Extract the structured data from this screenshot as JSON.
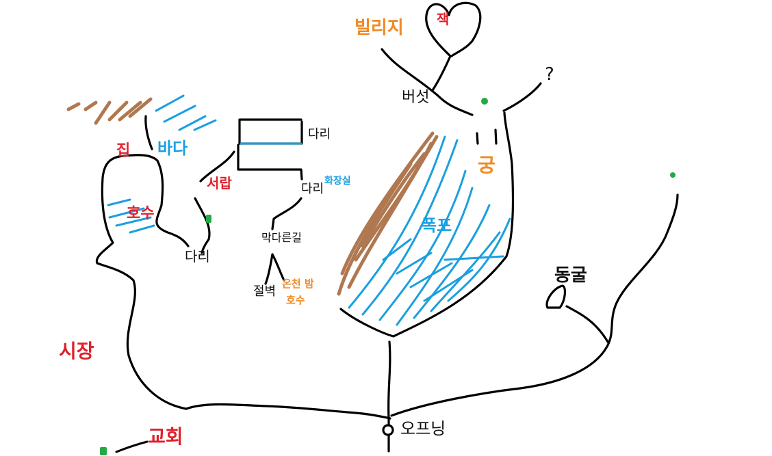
{
  "colors": {
    "path": "#000000",
    "water": "#1a9fe0",
    "dirt": "#b07850",
    "marker": "#22aa44",
    "label_red": "#e0202a",
    "label_orange": "#f08a24",
    "label_blue": "#1a9fe0",
    "label_black": "#111111"
  },
  "labels": {
    "village": "빌리지",
    "heart": "잭",
    "mushroom": "버섯",
    "question": "?",
    "house": "집",
    "sea": "바다",
    "lake": "호수",
    "bridge_top": "다리",
    "bridge_bottom": "다리",
    "drawer": "서랍",
    "leg": "다리",
    "toilet": "화장실",
    "dead_end": "막다른길",
    "cliff": "절벽",
    "hot_spring": "온천 밤",
    "lake2": "호수",
    "building": "궁",
    "waterfall": "폭포",
    "statue": "동굴",
    "market": "시장",
    "church": "교회",
    "opening": "오프닝"
  }
}
